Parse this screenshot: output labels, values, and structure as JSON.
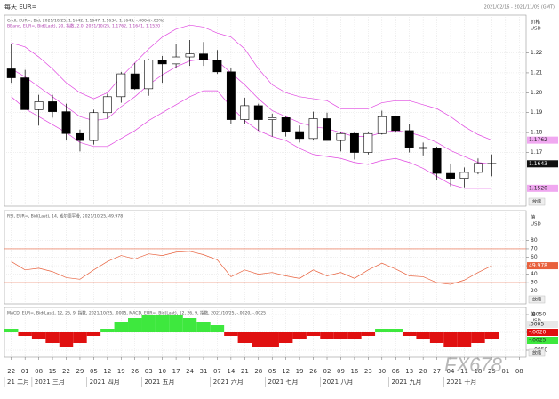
{
  "header": {
    "title": "每天 EUR=",
    "range": "2021/02/16 - 2021/11/09 (GMT)",
    "zoom_label": "放缩",
    "watermark": "FX678"
  },
  "chart_data": [
    {
      "type": "candlestick",
      "legend": "Cndl, EUR=, Bid, 2021/10/25, 1.1642, 1.1647, 1.1634, 1.1643, -.0004(-.03%)",
      "legend2": "BBand, EUR=, Bid(Last), 20, 指数, 2.0, 2021/10/25, 1.1762, 1.1641, 1.1520",
      "axis_label": [
        "价格",
        "USD"
      ],
      "categories": [
        "22",
        "01",
        "08",
        "15",
        "22",
        "29",
        "05",
        "12",
        "19",
        "26",
        "03",
        "10",
        "17",
        "24",
        "31",
        "07",
        "14",
        "21",
        "28",
        "05",
        "12",
        "19",
        "26",
        "02",
        "09",
        "16",
        "23",
        "30",
        "06",
        "13",
        "20",
        "27",
        "04",
        "11",
        "18",
        "25",
        "01",
        "08"
      ],
      "months": [
        "21 二月",
        null,
        "2021 三月",
        null,
        null,
        null,
        "2021 四月",
        null,
        null,
        null,
        "2021 五月",
        null,
        null,
        null,
        null,
        "2021 六月",
        null,
        null,
        null,
        "2021 七月",
        null,
        null,
        null,
        "2021 八月",
        null,
        null,
        null,
        null,
        "2021 九月",
        null,
        null,
        null,
        "2021 十月",
        null,
        null,
        null,
        null,
        null
      ],
      "open": [
        1.212,
        1.2075,
        1.1915,
        1.1955,
        1.1905,
        1.1795,
        1.176,
        1.19,
        1.198,
        1.2095,
        1.202,
        1.2165,
        1.2145,
        1.218,
        1.2195,
        1.2165,
        1.2105,
        1.1865,
        1.1935,
        1.1865,
        1.1875,
        1.1805,
        1.177,
        1.187,
        1.176,
        1.1795,
        1.17,
        1.1795,
        1.188,
        1.181,
        1.1725,
        1.172,
        1.1595,
        1.157,
        1.16,
        1.1645,
        null,
        null
      ],
      "high": [
        1.2243,
        1.2115,
        1.199,
        1.199,
        1.1945,
        1.1815,
        1.1915,
        1.1995,
        1.2105,
        1.215,
        1.217,
        1.2185,
        1.2245,
        1.2265,
        1.2255,
        1.2215,
        1.2125,
        1.1975,
        1.1945,
        1.1895,
        1.188,
        1.1835,
        1.1905,
        1.19,
        1.18,
        1.1805,
        1.18,
        1.191,
        1.1885,
        1.1845,
        1.175,
        1.173,
        1.164,
        1.1625,
        1.167,
        1.169,
        null,
        null
      ],
      "low": [
        1.205,
        1.1915,
        1.1835,
        1.1875,
        1.176,
        1.1705,
        1.174,
        1.187,
        1.195,
        1.2015,
        1.1985,
        1.205,
        1.2125,
        1.2135,
        1.2135,
        1.2095,
        1.1845,
        1.1845,
        1.181,
        1.178,
        1.178,
        1.175,
        1.176,
        1.176,
        1.1705,
        1.1665,
        1.169,
        1.179,
        1.18,
        1.17,
        1.1685,
        1.156,
        1.153,
        1.1525,
        1.159,
        1.158,
        null,
        null
      ],
      "close": [
        1.2075,
        1.1915,
        1.1955,
        1.1905,
        1.1795,
        1.176,
        1.19,
        1.198,
        1.2095,
        1.202,
        1.2165,
        1.2145,
        1.218,
        1.2195,
        1.2165,
        1.2105,
        1.1865,
        1.1935,
        1.1865,
        1.1875,
        1.1805,
        1.177,
        1.187,
        1.176,
        1.1795,
        1.17,
        1.1795,
        1.188,
        1.181,
        1.1725,
        1.172,
        1.1595,
        1.157,
        1.16,
        1.1645,
        1.1643,
        null,
        null
      ],
      "overlays": [
        {
          "color": "#e046e0",
          "values": [
            1.225,
            1.223,
            1.218,
            1.212,
            1.205,
            1.2,
            1.197,
            1.2,
            1.208,
            1.215,
            1.222,
            1.228,
            1.232,
            1.234,
            1.233,
            1.23,
            1.228,
            1.222,
            1.212,
            1.204,
            1.2,
            1.198,
            1.197,
            1.196,
            1.192,
            1.192,
            1.192,
            1.195,
            1.196,
            1.196,
            1.194,
            1.192,
            1.188,
            1.183,
            1.179,
            1.1762,
            null,
            null
          ]
        },
        {
          "color": "#e046e0",
          "values": [
            1.212,
            1.208,
            1.203,
            1.198,
            1.193,
            1.188,
            1.186,
            1.187,
            1.193,
            1.198,
            1.204,
            1.209,
            1.213,
            1.216,
            1.217,
            1.216,
            1.21,
            1.204,
            1.197,
            1.191,
            1.188,
            1.185,
            1.183,
            1.182,
            1.18,
            1.178,
            1.178,
            1.18,
            1.181,
            1.18,
            1.178,
            1.175,
            1.171,
            1.168,
            1.165,
            1.1641,
            null,
            null
          ]
        },
        {
          "color": "#e046e0",
          "values": [
            1.198,
            1.192,
            1.188,
            1.184,
            1.18,
            1.175,
            1.173,
            1.173,
            1.177,
            1.181,
            1.186,
            1.19,
            1.194,
            1.198,
            1.201,
            1.201,
            1.193,
            1.186,
            1.181,
            1.178,
            1.176,
            1.172,
            1.169,
            1.168,
            1.167,
            1.165,
            1.164,
            1.166,
            1.167,
            1.165,
            1.162,
            1.158,
            1.154,
            1.152,
            1.152,
            1.152,
            null,
            null
          ]
        }
      ],
      "last_labels": [
        "1.1762",
        "1.1643",
        "1.1520"
      ],
      "ylim": [
        1.143,
        1.239
      ],
      "yticks": [
        1.17,
        1.18,
        1.19,
        {
          "value": 1.2,
          "label": "1.20"
        },
        1.21,
        1.22
      ],
      "grid": true
    },
    {
      "type": "line",
      "legend": "RSI, EUR=, Bid(Last), 14, 威尔德平滑, 2021/10/25, 49.978",
      "axis_label": [
        "值",
        "USD"
      ],
      "color": "#e8603c",
      "values": [
        55,
        45,
        47,
        43,
        36,
        34,
        45,
        55,
        62,
        58,
        64,
        62,
        66,
        67,
        63,
        57,
        37,
        45,
        40,
        42,
        38,
        35,
        45,
        38,
        42,
        35,
        45,
        53,
        46,
        38,
        37,
        30,
        28,
        33,
        42,
        49.978,
        null,
        null
      ],
      "levels": [
        70,
        30
      ],
      "last_labels": [
        "49.978"
      ],
      "ylim": [
        5,
        115
      ],
      "yticks": [
        20,
        30,
        40,
        50,
        60,
        70,
        80
      ],
      "grid": true
    },
    {
      "type": "bar",
      "legend": "MACD, EUR=, Bid(Last), 12, 26, 9, 指数, 2021/10/25, .0005, MACD, EUR=, Bid(Last), 12, 26, 9, 指数, 2021/10/25, -.0020, -.0025",
      "axis_label": [
        "值",
        "USD"
      ],
      "colors": [
        "#3ee83e",
        "#e01010"
      ],
      "values": [
        0.001,
        -0.001,
        -0.002,
        -0.003,
        -0.004,
        -0.003,
        -0.001,
        0.001,
        0.003,
        0.004,
        0.005,
        0.005,
        0.005,
        0.004,
        0.003,
        0.002,
        -0.001,
        -0.003,
        -0.004,
        -0.004,
        -0.003,
        -0.002,
        -0.001,
        -0.002,
        -0.002,
        -0.002,
        -0.001,
        0.001,
        0.001,
        -0.001,
        -0.002,
        -0.003,
        -0.004,
        -0.004,
        -0.003,
        -0.002,
        null,
        null
      ],
      "last_labels": [
        ".0005",
        "-.0020",
        "-.0025"
      ],
      "ylim": [
        -0.007,
        0.007
      ],
      "yticks": [
        {
          "value": 0.005,
          "label": ".0050"
        },
        {
          "value": 0,
          "label": ".0000"
        },
        {
          "value": -0.005,
          "label": "-.0050"
        }
      ],
      "grid": true
    }
  ]
}
